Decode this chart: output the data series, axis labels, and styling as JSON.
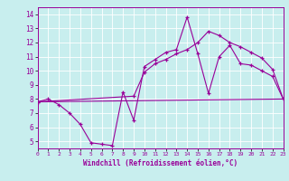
{
  "xlabel": "Windchill (Refroidissement éolien,°C)",
  "xlim": [
    0,
    23
  ],
  "ylim": [
    4.5,
    14.5
  ],
  "yticks": [
    5,
    6,
    7,
    8,
    9,
    10,
    11,
    12,
    13,
    14
  ],
  "xticks": [
    0,
    1,
    2,
    3,
    4,
    5,
    6,
    7,
    8,
    9,
    10,
    11,
    12,
    13,
    14,
    15,
    16,
    17,
    18,
    19,
    20,
    21,
    22,
    23
  ],
  "background_color": "#c8eeee",
  "line_color": "#990099",
  "line1_x": [
    0,
    1,
    2,
    3,
    4,
    5,
    6,
    7,
    8,
    9,
    10,
    11,
    12,
    13,
    14,
    15,
    16,
    17,
    18,
    19,
    20,
    21,
    22,
    23
  ],
  "line1_y": [
    7.8,
    8.0,
    7.6,
    7.0,
    6.2,
    4.9,
    4.8,
    4.7,
    8.5,
    6.5,
    10.3,
    10.8,
    11.3,
    11.5,
    13.8,
    11.2,
    8.4,
    11.0,
    11.8,
    10.5,
    10.4,
    10.0,
    9.6,
    8.0
  ],
  "line2_x": [
    0,
    23
  ],
  "line2_y": [
    7.8,
    8.0
  ],
  "line3_x": [
    0,
    9,
    10,
    11,
    12,
    13,
    14,
    15,
    16,
    17,
    18,
    19,
    20,
    21,
    22,
    23
  ],
  "line3_y": [
    7.8,
    8.2,
    9.9,
    10.5,
    10.8,
    11.2,
    11.5,
    12.0,
    12.8,
    12.5,
    12.0,
    11.7,
    11.3,
    10.9,
    10.1,
    8.0
  ]
}
